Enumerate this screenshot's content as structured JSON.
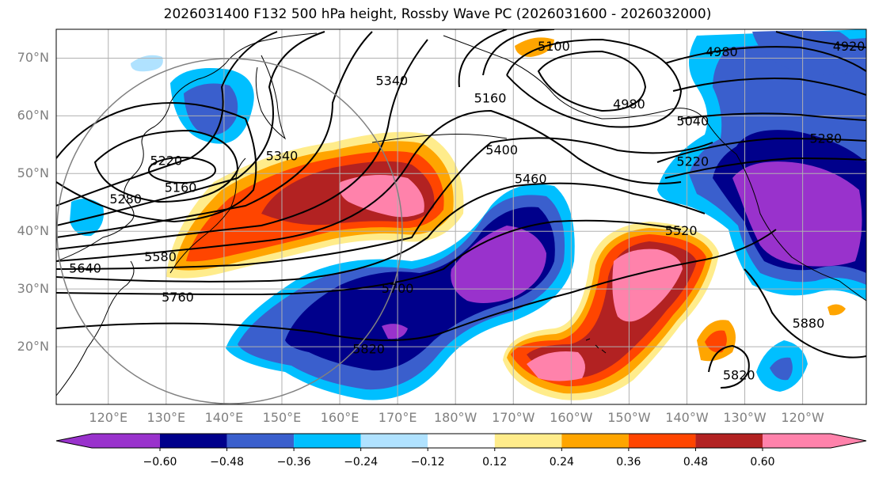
{
  "title": "2026031400 F132 500 hPa height, Rossby Wave PC (2026031600 - 2026032000)",
  "map": {
    "projection": "plate-carree",
    "lon_range": [
      111,
      251
    ],
    "lat_range": [
      10,
      75
    ],
    "grid": true,
    "lat_labels": [
      "70°N",
      "60°N",
      "50°N",
      "40°N",
      "30°N",
      "20°N"
    ],
    "lat_values": [
      70,
      60,
      50,
      40,
      30,
      20
    ],
    "lon_labels": [
      "120°E",
      "130°E",
      "140°E",
      "150°E",
      "160°E",
      "170°E",
      "180°W",
      "170°W",
      "160°W",
      "150°W",
      "140°W",
      "130°W",
      "120°W"
    ],
    "lon_values": [
      120,
      130,
      140,
      150,
      160,
      170,
      180,
      190,
      200,
      210,
      220,
      230,
      240
    ],
    "contour_labels": [
      {
        "text": "5220",
        "lon": 130,
        "lat": 52.2
      },
      {
        "text": "5160",
        "lon": 132.5,
        "lat": 47.5
      },
      {
        "text": "5280",
        "lon": 123,
        "lat": 45.5
      },
      {
        "text": "5640",
        "lon": 116,
        "lat": 33.5
      },
      {
        "text": "5580",
        "lon": 129,
        "lat": 35.5
      },
      {
        "text": "5760",
        "lon": 132,
        "lat": 28.5
      },
      {
        "text": "5340",
        "lon": 169,
        "lat": 66
      },
      {
        "text": "5340",
        "lon": 150,
        "lat": 53
      },
      {
        "text": "5100",
        "lon": 197,
        "lat": 72
      },
      {
        "text": "5160",
        "lon": 186,
        "lat": 63
      },
      {
        "text": "5400",
        "lon": 188,
        "lat": 54
      },
      {
        "text": "5460",
        "lon": 193,
        "lat": 49
      },
      {
        "text": "4980",
        "lon": 226,
        "lat": 71
      },
      {
        "text": "4980",
        "lon": 210,
        "lat": 62
      },
      {
        "text": "4920",
        "lon": 248,
        "lat": 72
      },
      {
        "text": "5040",
        "lon": 221,
        "lat": 59
      },
      {
        "text": "5280",
        "lon": 244,
        "lat": 56
      },
      {
        "text": "5220",
        "lon": 221,
        "lat": 52
      },
      {
        "text": "5520",
        "lon": 219,
        "lat": 40
      },
      {
        "text": "5700",
        "lon": 170,
        "lat": 30
      },
      {
        "text": "5820",
        "lon": 165,
        "lat": 19.5
      },
      {
        "text": "5880",
        "lon": 241,
        "lat": 24
      },
      {
        "text": "5820",
        "lon": 229,
        "lat": 15
      }
    ]
  },
  "colorbar": {
    "ticks": [
      "−0.60",
      "−0.48",
      "−0.36",
      "−0.24",
      "−0.12",
      "0.12",
      "0.24",
      "0.36",
      "0.48",
      "0.60"
    ],
    "colors": [
      "#9932cc",
      "#00008b",
      "#3a5fcd",
      "#00bfff",
      "#b0e2ff",
      "#ffffff",
      "#ffec8b",
      "#ffa500",
      "#ff4500",
      "#b22222",
      "#ff82ab"
    ],
    "extend": "both"
  },
  "colors": {
    "neg_strong": "#9932cc",
    "neg_2": "#00008b",
    "neg_3": "#3a5fcd",
    "neg_4": "#00bfff",
    "neg_5": "#b0e2ff",
    "pos_1": "#ffec8b",
    "pos_2": "#ffa500",
    "pos_3": "#ff4500",
    "pos_4": "#b22222",
    "pos_5": "#ff82ab"
  }
}
